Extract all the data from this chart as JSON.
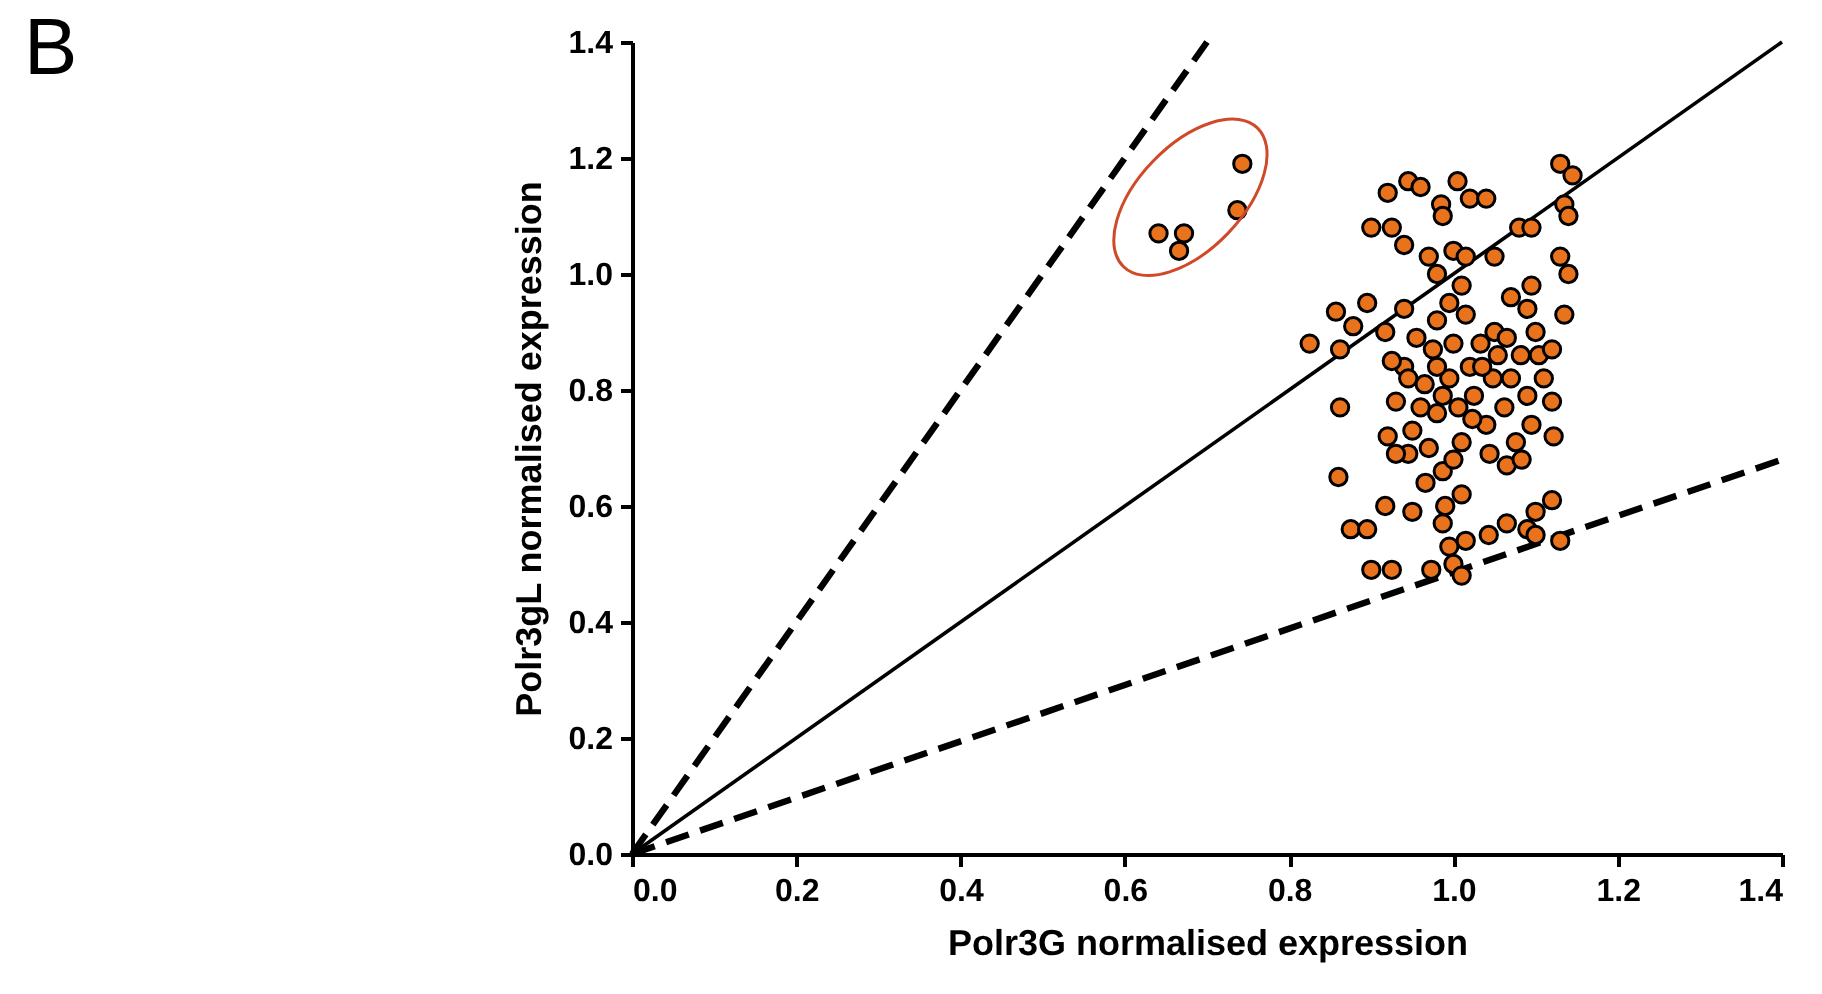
{
  "chart_data": {
    "type": "scatter",
    "xlabel": "Polr3G normalised expression",
    "ylabel": "Polr3gL normalised expression",
    "annotations": [
      "B"
    ],
    "xlim": [
      0,
      1.4
    ],
    "ylim": [
      0,
      1.4
    ],
    "xticks": [
      {
        "value": 0,
        "label": "0.0"
      },
      0.2,
      0.4,
      0.6,
      0.8,
      {
        "value": 1,
        "label": "1.0"
      },
      1.2,
      1.4
    ],
    "yticks": [
      {
        "value": 0,
        "label": "0.0"
      },
      0.2,
      0.4,
      0.6,
      0.8,
      {
        "value": 1,
        "label": "1.0"
      },
      1.2,
      1.4
    ],
    "grid": false,
    "series": [
      {
        "color": "#e8731c",
        "marker": "circle",
        "x": [
          0.92,
          0.945,
          0.96,
          0.985,
          1.005,
          1.02,
          1.04,
          0.987,
          0.925,
          0.9,
          0.94,
          0.97,
          1.0,
          1.015,
          0.98,
          1.05,
          1.07,
          1.09,
          1.095,
          1.08,
          1.095,
          1.13,
          1.145,
          1.135,
          1.14,
          1.13,
          1.14,
          1.135,
          0.825,
          0.857,
          0.878,
          0.895,
          0.862,
          0.917,
          0.94,
          0.955,
          0.862,
          0.86,
          0.875,
          0.895,
          0.917,
          0.9,
          0.925,
          0.95,
          0.973,
          1.0,
          1.015,
          1.043,
          1.065,
          1.09,
          1.1,
          1.13,
          1.1,
          1.12,
          0.92,
          0.93,
          0.94,
          0.945,
          0.95,
          0.965,
          0.975,
          0.98,
          0.987,
          0.99,
          0.995,
          1.0,
          1.006,
          1.01,
          1.015,
          1.02,
          1.025,
          1.033,
          1.04,
          1.048,
          1.054,
          1.062,
          1.07,
          1.076,
          1.082,
          1.09,
          1.095,
          1.104,
          1.11,
          1.12,
          1.122,
          1.12,
          0.966,
          1.01,
          0.987,
          1.01,
          0.995,
          0.98,
          1.01,
          0.995,
          0.93,
          0.96,
          1.023,
          1.044,
          1.065,
          1.083,
          0.945,
          0.925,
          1.05,
          1.1,
          0.97,
          1.0,
          0.98,
          1.035,
          1.065,
          0.987
        ],
        "values": [
          1.14,
          1.16,
          1.15,
          1.12,
          1.16,
          1.13,
          1.13,
          1.1,
          1.08,
          1.08,
          1.05,
          1.03,
          1.04,
          1.03,
          1.0,
          1.03,
          0.96,
          0.94,
          0.98,
          1.08,
          1.08,
          1.19,
          1.17,
          1.12,
          1.1,
          1.03,
          1.0,
          0.93,
          0.88,
          0.935,
          0.91,
          0.95,
          0.87,
          0.9,
          0.94,
          0.89,
          0.77,
          0.65,
          0.56,
          0.56,
          0.6,
          0.49,
          0.49,
          0.59,
          0.49,
          0.5,
          0.54,
          0.55,
          0.57,
          0.56,
          0.55,
          0.54,
          0.59,
          0.61,
          0.72,
          0.78,
          0.84,
          0.69,
          0.73,
          0.81,
          0.87,
          0.76,
          0.66,
          0.6,
          0.82,
          0.88,
          0.77,
          0.71,
          0.93,
          0.84,
          0.79,
          0.88,
          0.74,
          0.82,
          0.86,
          0.77,
          0.82,
          0.71,
          0.86,
          0.79,
          0.74,
          0.86,
          0.82,
          0.78,
          0.72,
          0.87,
          0.64,
          0.62,
          0.57,
          0.48,
          0.53,
          0.92,
          0.98,
          0.95,
          0.69,
          0.77,
          0.75,
          0.69,
          0.67,
          0.68,
          0.82,
          0.85,
          0.9,
          0.9,
          0.7,
          0.68,
          0.84,
          0.84,
          0.89,
          0.79
        ]
      },
      {
        "color": "#e8731c",
        "marker": "circle",
        "x": [
          0.641,
          0.672,
          0.666,
          0.737,
          0.743
        ],
        "values": [
          1.07,
          1.07,
          1.04,
          1.11,
          1.19
        ]
      },
      {
        "type": "line",
        "color": "#000000",
        "line_style": "solid",
        "x": [
          0,
          1.4
        ],
        "values": [
          0,
          1.4
        ]
      },
      {
        "type": "line",
        "color": "#000000",
        "line_style": "dashed",
        "x": [
          0,
          0.7
        ],
        "values": [
          0,
          1.4
        ]
      },
      {
        "type": "line",
        "color": "#000000",
        "line_style": "dashed",
        "x": [
          0,
          1.4
        ],
        "values": [
          0,
          0.68
        ]
      }
    ]
  }
}
